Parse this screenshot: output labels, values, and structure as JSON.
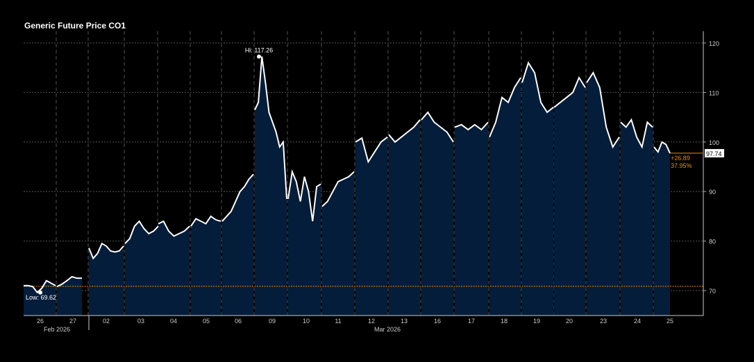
{
  "chart_data": {
    "type": "area",
    "title": "Generic Future Price CO1",
    "ylim": [
      65,
      122
    ],
    "yticks": [
      70,
      80,
      90,
      100,
      110,
      120
    ],
    "month_labels": [
      {
        "label": "Feb 2026",
        "day": "26"
      },
      {
        "label": "Mar 2026",
        "day": "12"
      }
    ],
    "days": [
      {
        "label": "26",
        "values": [
          71,
          71,
          70.8,
          69.62,
          70.5,
          72,
          71.5,
          71
        ]
      },
      {
        "label": "27",
        "values": [
          70.8,
          71.3,
          72,
          72.8,
          72.5,
          72.5
        ]
      },
      {
        "label": "02",
        "values": [
          78.6,
          76.5,
          77.5,
          79.5,
          79,
          78,
          77.8,
          78,
          79
        ]
      },
      {
        "label": "03",
        "values": [
          79.5,
          80.5,
          83,
          84,
          82.5,
          81.5,
          82,
          83
        ]
      },
      {
        "label": "04",
        "values": [
          83.5,
          84,
          82,
          81,
          81.5,
          82,
          83
        ]
      },
      {
        "label": "05",
        "values": [
          83,
          84.5,
          84,
          83.5,
          85,
          84.3,
          84
        ]
      },
      {
        "label": "06",
        "values": [
          84,
          85,
          86,
          88,
          90,
          91,
          92.5,
          93.5
        ]
      },
      {
        "label": "09",
        "values": [
          106.5,
          108,
          117.26,
          112,
          106,
          104,
          102,
          99,
          100,
          88.5
        ]
      },
      {
        "label": "10",
        "values": [
          88.5,
          94,
          92,
          88,
          93,
          90,
          84,
          91,
          91.5
        ]
      },
      {
        "label": "11",
        "values": [
          87,
          88,
          90,
          92,
          92.5,
          93,
          94
        ]
      },
      {
        "label": "12",
        "values": [
          100,
          100.8,
          96,
          98,
          100,
          101
        ]
      },
      {
        "label": "13",
        "values": [
          101.5,
          100,
          101,
          102,
          103,
          104.5
        ]
      },
      {
        "label": "16",
        "values": [
          104.5,
          106,
          104,
          103,
          102,
          100
        ]
      },
      {
        "label": "17",
        "values": [
          103,
          103.5,
          102.5,
          103.5,
          102.5,
          104
        ]
      },
      {
        "label": "18",
        "values": [
          101,
          104,
          109,
          108,
          111,
          113
        ]
      },
      {
        "label": "19",
        "values": [
          112,
          116,
          114,
          108,
          106,
          107
        ]
      },
      {
        "label": "20",
        "values": [
          107,
          108,
          109,
          110,
          113,
          111
        ]
      },
      {
        "label": "23",
        "values": [
          112,
          114,
          111,
          103,
          99,
          101
        ]
      },
      {
        "label": "24",
        "values": [
          104,
          103,
          104.5,
          101,
          99,
          104,
          103
        ]
      },
      {
        "label": "25",
        "values": [
          99,
          98,
          100,
          99.5,
          97.74
        ]
      }
    ],
    "hi": {
      "label": "Hi: 117.26",
      "value": 117.26
    },
    "low": {
      "label": "Low: 69.62",
      "value": 69.62
    },
    "ref_value": 70.85,
    "last": {
      "label": "97.74",
      "value": 97.74
    },
    "change": {
      "abs": "+26.89",
      "pct": "37.95%"
    },
    "colors": {
      "fill": "#041d3a",
      "line": "#ffffff",
      "accent": "#f08c00",
      "grid": "#555555"
    }
  }
}
